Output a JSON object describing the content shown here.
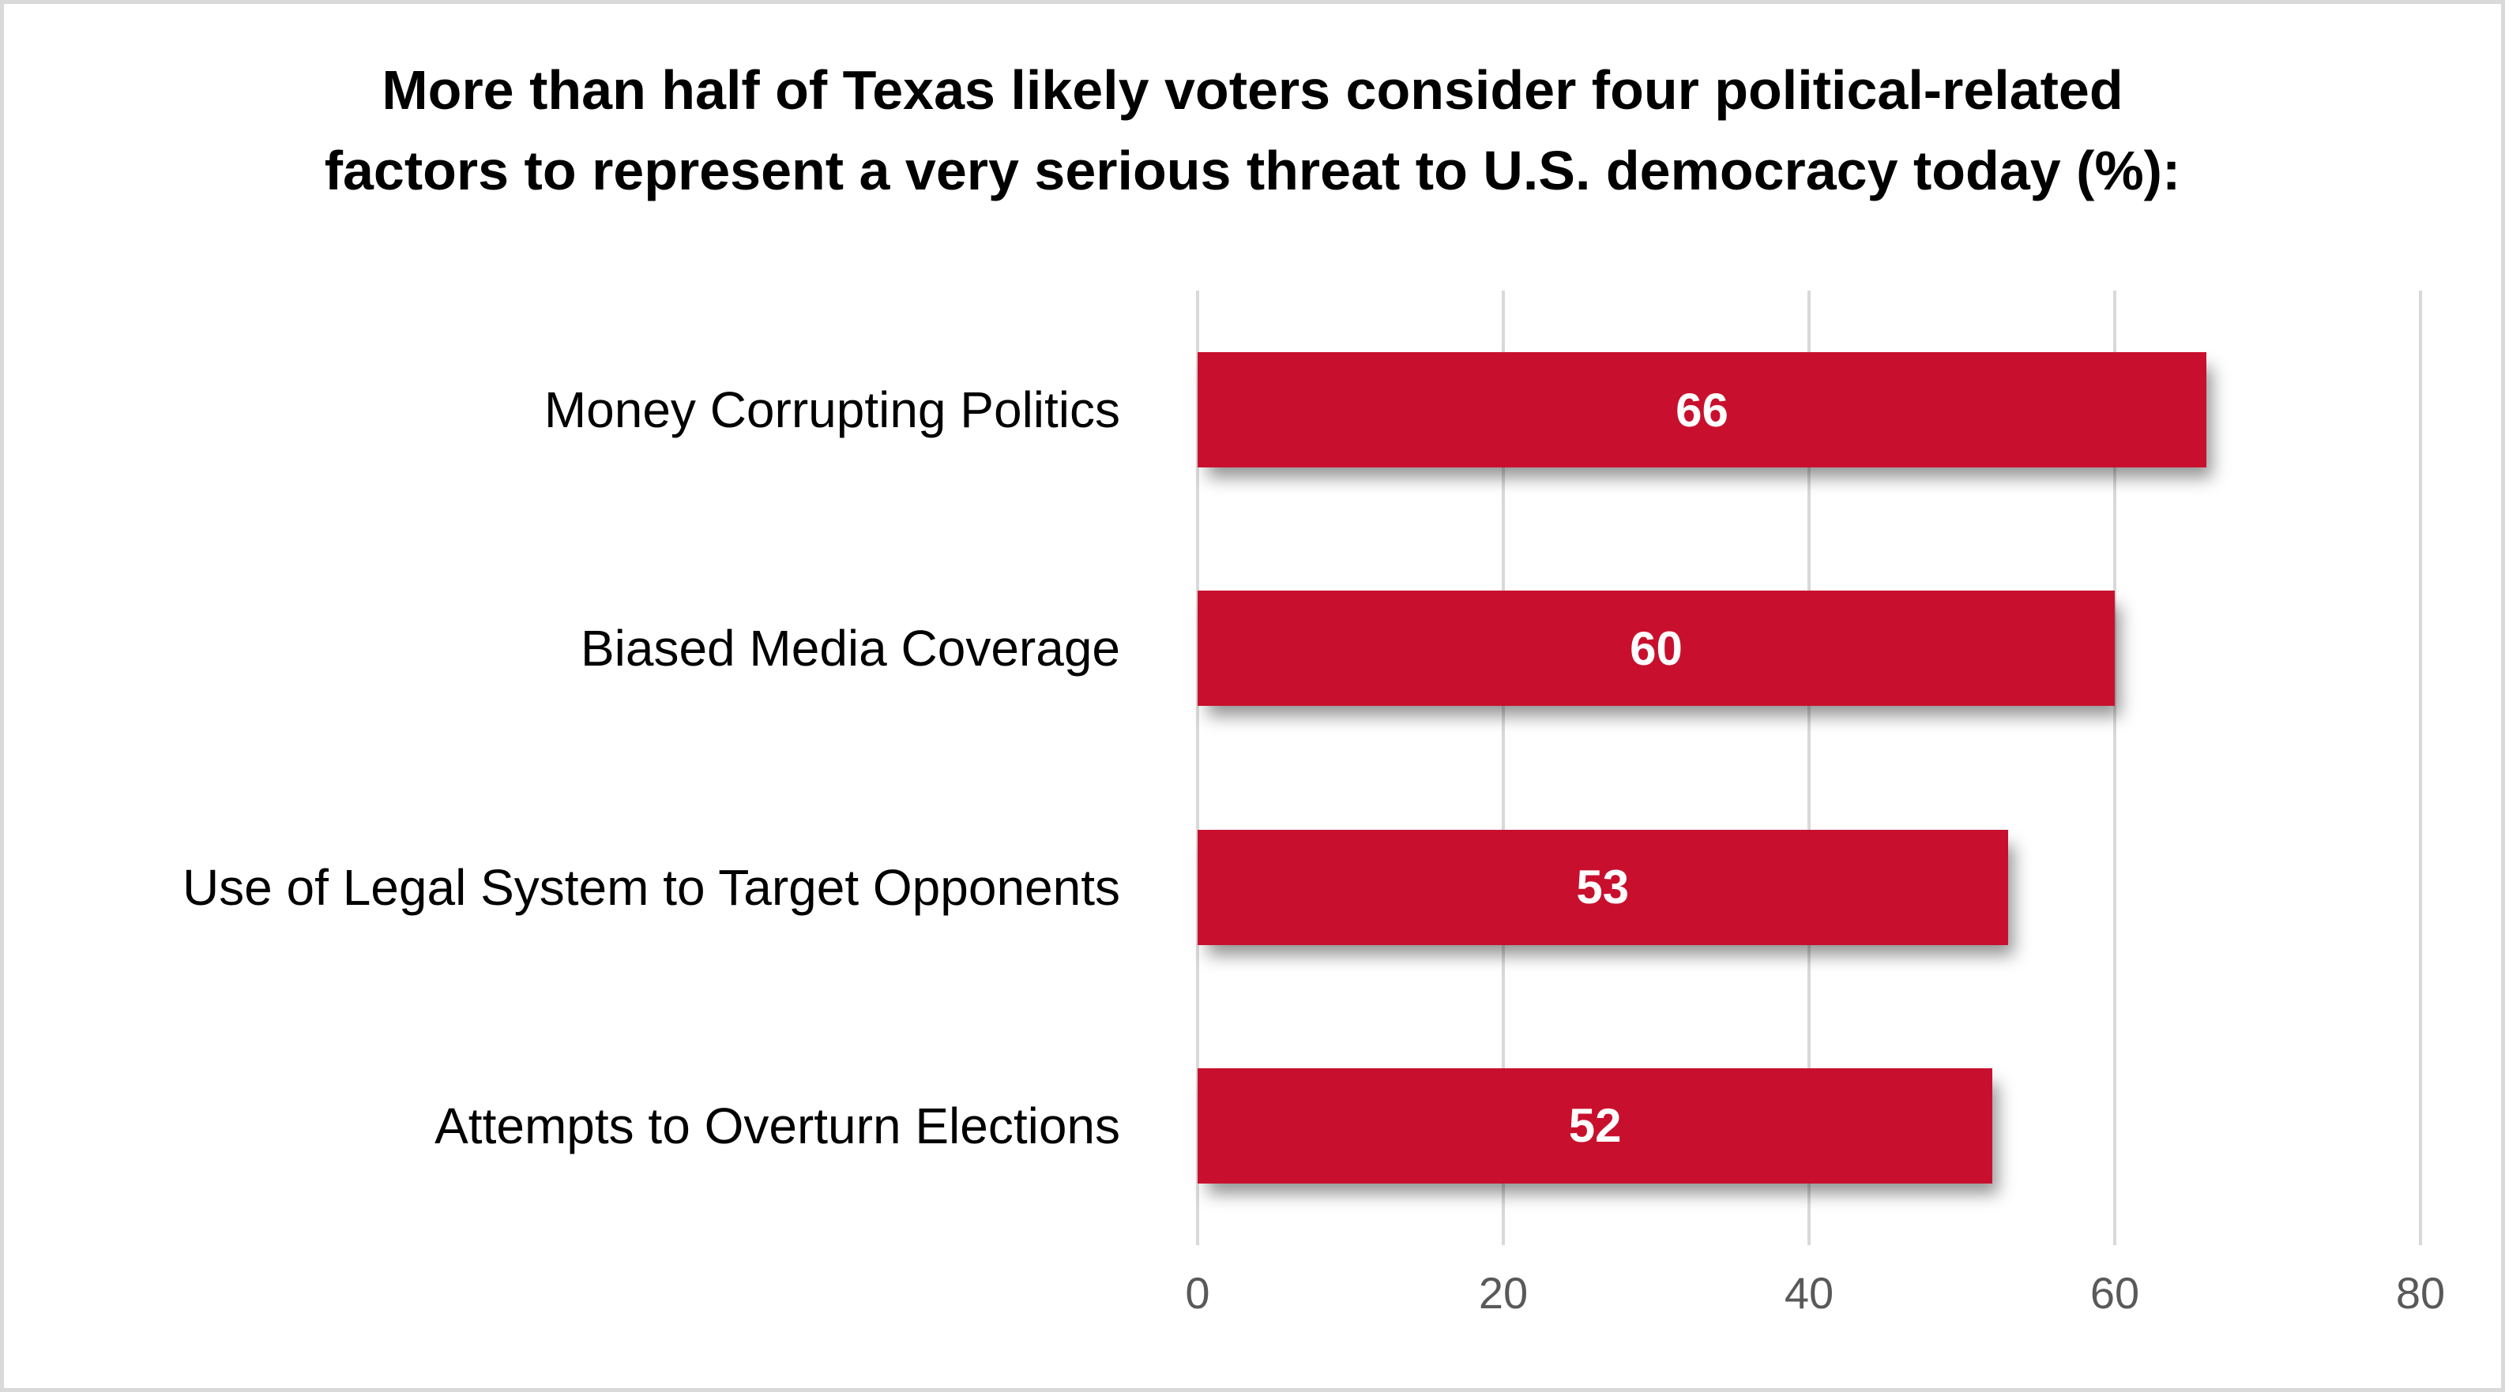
{
  "frame": {
    "background_color": "#FFFFFF",
    "border_color": "#D9D9D9"
  },
  "title": {
    "line1": "More than half of Texas likely voters consider four political-related",
    "line2": "factors to represent a very serious threat to U.S. democracy today (%):"
  },
  "chart_data": {
    "type": "bar",
    "orientation": "horizontal",
    "title": "More than half of Texas likely voters consider four political-related factors to represent a very serious threat to U.S. democracy today (%):",
    "categories": [
      "Money Corrupting Politics",
      "Biased Media Coverage",
      "Use of Legal System to Target Opponents",
      "Attempts to Overturn Elections"
    ],
    "values": [
      66,
      60,
      53,
      52
    ],
    "data_labels": [
      "66",
      "60",
      "53",
      "52"
    ],
    "xlabel": "",
    "ylabel": "",
    "xlim": [
      0,
      80
    ],
    "xticks": [
      0,
      20,
      40,
      60,
      80
    ],
    "grid": true,
    "legend": false,
    "bar_color": "#C8102E",
    "value_label_color": "#FFFFFF",
    "gridline_color": "#D9D9D9",
    "tick_label_color": "#595959",
    "category_label_color": "#000000"
  }
}
